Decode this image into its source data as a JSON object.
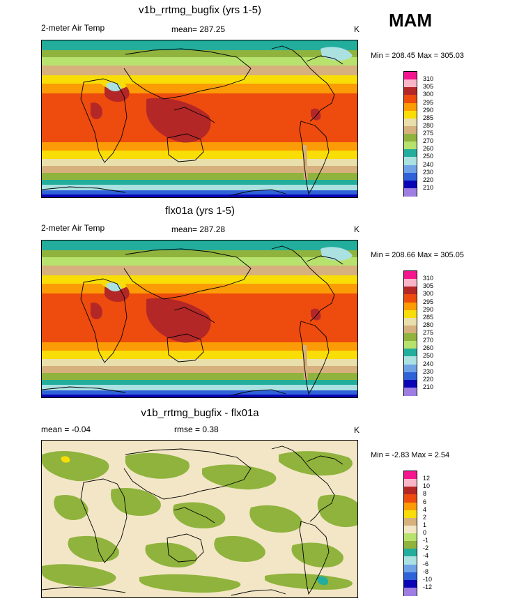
{
  "season": "MAM",
  "panels": [
    {
      "title": "v1b_rrtmg_bugfix (yrs 1-5)",
      "left_label": "2-meter Air Temp",
      "mean_label": "mean=",
      "mean_value": "287.25",
      "units": "K",
      "stats": "Min = 208.45 Max = 305.03",
      "colorbar": {
        "labels": [
          "310",
          "305",
          "300",
          "295",
          "290",
          "285",
          "280",
          "275",
          "270",
          "260",
          "250",
          "240",
          "230",
          "220",
          "210"
        ],
        "colors": [
          "#f5158f",
          "#f9b6c8",
          "#b32727",
          "#ee4b0f",
          "#fb9b05",
          "#f9dd06",
          "#e8dfad",
          "#d6b07d",
          "#8fb33c",
          "#b8e26e",
          "#22ad9c",
          "#abe1e1",
          "#6fa3e6",
          "#2f61d8",
          "#0a04b4",
          "#9e7ee3"
        ]
      },
      "map_type": "absolute"
    },
    {
      "title": "flx01a (yrs 1-5)",
      "left_label": "2-meter Air Temp",
      "mean_label": "mean=",
      "mean_value": "287.28",
      "units": "K",
      "stats": "Min = 208.66 Max = 305.05",
      "colorbar": {
        "labels": [
          "310",
          "305",
          "300",
          "295",
          "290",
          "285",
          "280",
          "275",
          "270",
          "260",
          "250",
          "240",
          "230",
          "220",
          "210"
        ],
        "colors": [
          "#f5158f",
          "#f9b6c8",
          "#b32727",
          "#ee4b0f",
          "#fb9b05",
          "#f9dd06",
          "#e8dfad",
          "#d6b07d",
          "#8fb33c",
          "#b8e26e",
          "#22ad9c",
          "#abe1e1",
          "#6fa3e6",
          "#2f61d8",
          "#0a04b4",
          "#9e7ee3"
        ]
      },
      "map_type": "absolute"
    },
    {
      "title": "v1b_rrtmg_bugfix - flx01a",
      "left_label": "mean =  -0.04",
      "mean_label": "rmse =",
      "mean_value": "0.38",
      "units": "K",
      "stats": "Min =  -2.83 Max =   2.54",
      "colorbar": {
        "labels": [
          "12",
          "10",
          "8",
          "6",
          "4",
          "2",
          "1",
          "0",
          "-1",
          "-2",
          "-4",
          "-6",
          "-8",
          "-10",
          "-12"
        ],
        "colors": [
          "#f5158f",
          "#f9b6c8",
          "#b32727",
          "#ee4b0f",
          "#fb9b05",
          "#f9dd06",
          "#d6b07d",
          "#f3e6c6",
          "#b8e26e",
          "#8fb33c",
          "#22ad9c",
          "#abe1e1",
          "#6fa3e6",
          "#2f61d8",
          "#0a04b4",
          "#9e7ee3"
        ]
      },
      "map_type": "difference"
    }
  ]
}
